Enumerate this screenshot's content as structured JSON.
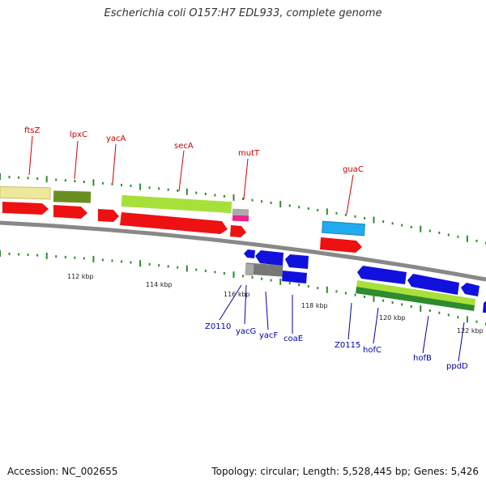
{
  "title": "Escherichia coli O157:H7 EDL933, complete genome",
  "footer": {
    "accession": "Accession: NC_002655",
    "summary": "Topology: circular; Length: 5,528,445 bp; Genes: 5,426"
  },
  "colors": {
    "forward_label": "#cc0000",
    "reverse_label": "#0000aa",
    "backbone": "#888888",
    "tick": "#2e8b2e",
    "cds_forward": "#ee1111",
    "cds_reverse": "#1111dd",
    "gray_feature": "#777777",
    "gene_light_green": "#a8e03a",
    "gene_dark_green": "#2e8b2e"
  },
  "scale_labels": [
    "112 kbp",
    "114 kbp",
    "116 kbp",
    "118 kbp",
    "120 kbp",
    "122 kbp"
  ],
  "forward_genes": [
    "ftsZ",
    "lpxC",
    "yacA",
    "secA",
    "mutT",
    "guaC"
  ],
  "reverse_genes": [
    "Z0110",
    "yacG",
    "yacF",
    "coaE",
    "Z0115",
    "hofC",
    "hofB",
    "ppdD"
  ]
}
